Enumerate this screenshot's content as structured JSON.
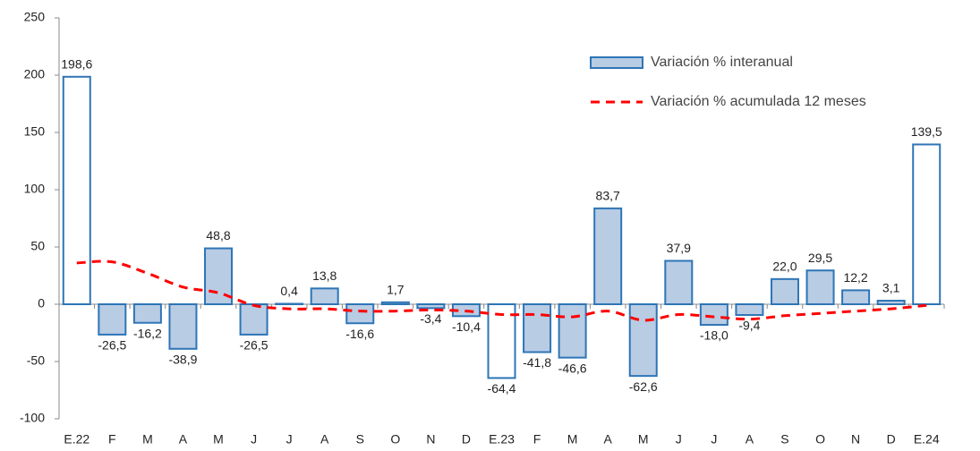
{
  "chart_data": {
    "type": "bar",
    "categories": [
      "E.22",
      "F",
      "M",
      "A",
      "M",
      "J",
      "J",
      "A",
      "S",
      "O",
      "N",
      "D",
      "E.23",
      "F",
      "M",
      "A",
      "M",
      "J",
      "J",
      "A",
      "S",
      "O",
      "N",
      "D",
      "E.24"
    ],
    "series": [
      {
        "name": "Variación % interanual",
        "type": "bar",
        "color": "#b8cce4",
        "edge_color": "#2e75b6",
        "fills": [
          "#ffffff",
          "#b8cce4",
          "#b8cce4",
          "#b8cce4",
          "#b8cce4",
          "#b8cce4",
          "#b8cce4",
          "#b8cce4",
          "#b8cce4",
          "#b8cce4",
          "#b8cce4",
          "#b8cce4",
          "#ffffff",
          "#b8cce4",
          "#b8cce4",
          "#b8cce4",
          "#b8cce4",
          "#b8cce4",
          "#b8cce4",
          "#b8cce4",
          "#b8cce4",
          "#b8cce4",
          "#b8cce4",
          "#b8cce4",
          "#ffffff"
        ],
        "values": [
          198.6,
          -26.5,
          -16.2,
          -38.9,
          48.8,
          -26.5,
          0.4,
          13.8,
          -16.6,
          1.7,
          -3.4,
          -10.4,
          -64.4,
          -41.8,
          -46.6,
          83.7,
          -62.6,
          37.9,
          -18.0,
          -9.4,
          22.0,
          29.5,
          12.2,
          3.1,
          139.5
        ],
        "value_labels": [
          "198,6",
          "-26,5",
          "-16,2",
          "-38,9",
          "48,8",
          "-26,5",
          "0,4",
          "13,8",
          "-16,6",
          "1,7",
          "-3,4",
          "-10,4",
          "-64,4",
          "-41,8",
          "-46,6",
          "83,7",
          "-62,6",
          "37,9",
          "-18,0",
          "-9,4",
          "22,0",
          "29,5",
          "12,2",
          "3,1",
          "139,5"
        ]
      },
      {
        "name": "Variación % acumulada 12 meses",
        "type": "line",
        "color": "#ff0000",
        "dashed": true,
        "values": [
          36,
          37,
          27,
          15,
          10,
          -1,
          -4,
          -4,
          -6,
          -6,
          -5,
          -6,
          -9,
          -9,
          -11,
          -6,
          -14,
          -9,
          -11,
          -13,
          -10,
          -8,
          -6,
          -4,
          -1
        ]
      }
    ],
    "ylim": [
      -100,
      250
    ],
    "yticks": [
      -100,
      -50,
      0,
      50,
      100,
      150,
      200,
      250
    ],
    "legend": "upper-right"
  }
}
